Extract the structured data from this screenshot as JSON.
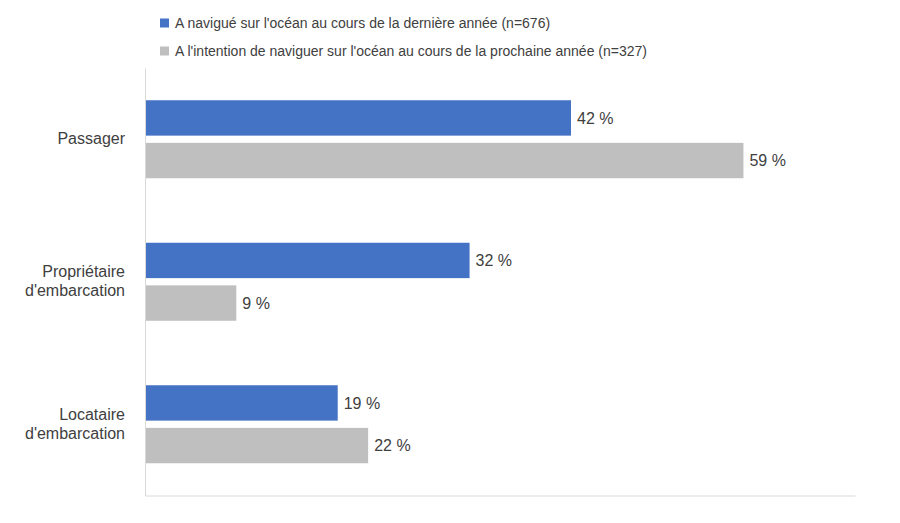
{
  "chart_data": {
    "type": "bar",
    "orientation": "horizontal",
    "categories": [
      "Passager",
      "Propriétaire d'embarcation",
      "Locataire d'embarcation"
    ],
    "series": [
      {
        "name": "A navigué sur l'océan au cours de la dernière année (n=676)",
        "color": "#4472c4",
        "values": [
          42,
          32,
          19
        ],
        "value_labels": [
          "42 %",
          "32 %",
          "19 %"
        ]
      },
      {
        "name": "A l'intention de naviguer sur l'océan au cours de la prochaine année (n=327)",
        "color": "#bfbfbf",
        "values": [
          59,
          9,
          22
        ],
        "value_labels": [
          "59 %",
          "9 %",
          "22 %"
        ]
      }
    ],
    "xlim": [
      0,
      70
    ],
    "xticks": [],
    "grid": false,
    "legend": "top",
    "data_labels": true,
    "tick_labels": false
  }
}
